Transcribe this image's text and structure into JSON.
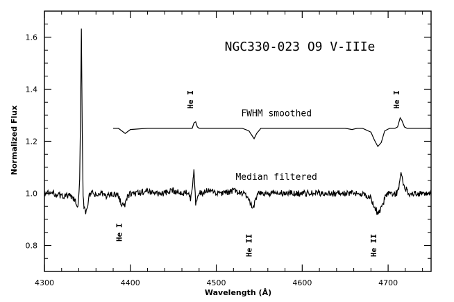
{
  "chart_data": {
    "type": "line",
    "title": "NGC330-023    O9 V-IIIe",
    "xlabel": "Wavelength (Å)",
    "ylabel": "Normalized Flux",
    "xlim": [
      4300,
      4750
    ],
    "ylim": [
      0.7,
      1.7
    ],
    "x_ticks": [
      4300,
      4400,
      4500,
      4600,
      4700
    ],
    "y_ticks": [
      0.8,
      1.0,
      1.2,
      1.4,
      1.6
    ],
    "x_tick_labels": [
      "4300",
      "4400",
      "4500",
      "4600",
      "4700"
    ],
    "y_tick_labels": [
      "0.8",
      "1.0",
      "1.2",
      "1.4",
      "1.6"
    ],
    "grid": false,
    "series": [
      {
        "name": "FWHM smoothed",
        "offset": 1.25,
        "x": [
          4380,
          4386,
          4390,
          4394,
          4400,
          4420,
          4440,
          4450,
          4460,
          4470,
          4472,
          4474,
          4476,
          4478,
          4480,
          4490,
          4500,
          4510,
          4520,
          4530,
          4538,
          4542,
          4544,
          4547,
          4552,
          4560,
          4580,
          4600,
          4620,
          4640,
          4650,
          4658,
          4664,
          4670,
          4680,
          4684,
          4688,
          4692,
          4696,
          4702,
          4708,
          4711,
          4714,
          4716,
          4719,
          4722,
          4730,
          4750
        ],
        "y": [
          1.25,
          1.25,
          1.24,
          1.23,
          1.245,
          1.25,
          1.25,
          1.25,
          1.25,
          1.25,
          1.25,
          1.27,
          1.275,
          1.255,
          1.25,
          1.25,
          1.25,
          1.25,
          1.25,
          1.25,
          1.24,
          1.22,
          1.21,
          1.23,
          1.25,
          1.25,
          1.25,
          1.25,
          1.25,
          1.25,
          1.25,
          1.245,
          1.25,
          1.25,
          1.235,
          1.205,
          1.18,
          1.195,
          1.24,
          1.25,
          1.25,
          1.255,
          1.29,
          1.28,
          1.255,
          1.25,
          1.25,
          1.25
        ]
      },
      {
        "name": "Median filtered",
        "x": [
          4300,
          4310,
          4320,
          4330,
          4336,
          4339,
          4341,
          4342,
          4343,
          4344,
          4345,
          4346,
          4348,
          4350,
          4352,
          4356,
          4360,
          4366,
          4372,
          4380,
          4386,
          4390,
          4393,
          4396,
          4400,
          4410,
          4420,
          4430,
          4440,
          4450,
          4460,
          4468,
          4470,
          4472,
          4473,
          4474,
          4475,
          4476,
          4478,
          4480,
          4484,
          4490,
          4500,
          4510,
          4520,
          4530,
          4536,
          4540,
          4542,
          4544,
          4546,
          4550,
          4556,
          4560,
          4570,
          4580,
          4590,
          4600,
          4610,
          4620,
          4630,
          4640,
          4650,
          4660,
          4670,
          4675,
          4680,
          4684,
          4688,
          4692,
          4696,
          4700,
          4705,
          4710,
          4713,
          4715,
          4717,
          4720,
          4725,
          4730,
          4740,
          4750
        ],
        "y": [
          1.0,
          1.0,
          0.99,
          0.99,
          0.97,
          0.94,
          1.05,
          1.28,
          1.63,
          1.25,
          1.0,
          0.95,
          0.93,
          0.95,
          0.99,
          1.0,
          0.99,
          1.0,
          0.99,
          1.0,
          0.99,
          0.96,
          0.95,
          0.98,
          1.0,
          1.0,
          1.01,
          1.0,
          1.0,
          1.01,
          1.0,
          1.01,
          0.98,
          1.02,
          1.06,
          1.09,
          1.02,
          0.96,
          0.99,
          1.0,
          1.0,
          1.01,
          1.0,
          1.0,
          1.01,
          1.0,
          0.99,
          0.96,
          0.94,
          0.95,
          0.98,
          1.0,
          1.0,
          1.0,
          1.0,
          1.0,
          1.0,
          1.0,
          1.0,
          1.0,
          1.0,
          1.0,
          1.0,
          1.0,
          1.0,
          0.99,
          0.98,
          0.95,
          0.92,
          0.94,
          0.98,
          1.0,
          1.0,
          1.0,
          1.03,
          1.08,
          1.04,
          1.02,
          1.0,
          1.0,
          1.0,
          1.0
        ]
      }
    ],
    "legend": {
      "placement": "none",
      "labels": [
        {
          "text": "FWHM smoothed",
          "x": 4570,
          "y": 1.31,
          "align": "middle"
        },
        {
          "text": "Median filtered",
          "x": 4570,
          "y": 1.065,
          "align": "middle"
        }
      ]
    },
    "annotations": [
      {
        "text": "He I",
        "x": 4473,
        "y": 1.36,
        "rotated": true
      },
      {
        "text": "He I",
        "x": 4713,
        "y": 1.36,
        "rotated": true
      },
      {
        "text": "He I",
        "x": 4390,
        "y": 0.85,
        "rotated": true
      },
      {
        "text": "He II",
        "x": 4541,
        "y": 0.8,
        "rotated": true
      },
      {
        "text": "He II",
        "x": 4686,
        "y": 0.8,
        "rotated": true
      }
    ]
  }
}
